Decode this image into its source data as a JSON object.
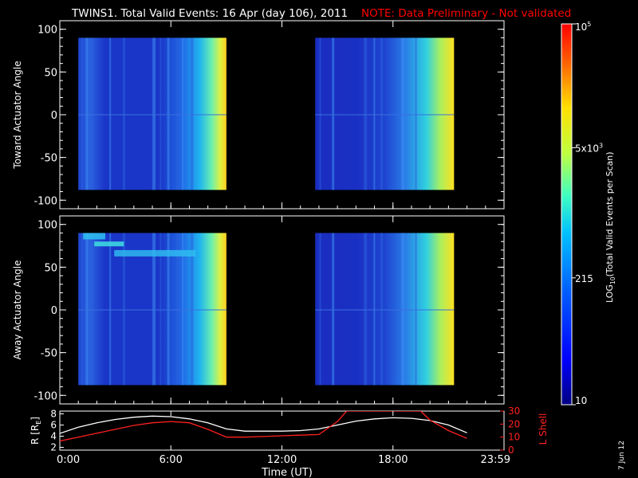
{
  "header": {
    "title": "TWINS1. Total Valid Events: 16 Apr (day 106), 2011",
    "note": "NOTE: Data Preliminary - Not validated"
  },
  "colors": {
    "background": "#000000",
    "axes": "#ffffff",
    "note": "#ff0000",
    "r_line": "#ffffff",
    "l_shell_line": "#ff2020"
  },
  "date_stamp": "7 Jun 12",
  "chart_data": [
    {
      "type": "heatmap",
      "id": "toward",
      "ylabel": "Toward Actuator Angle",
      "ylim": [
        -110,
        110
      ],
      "yticks": [
        100,
        50,
        0,
        -50,
        -100
      ],
      "xlim": [
        0,
        24
      ],
      "data_blocks": [
        {
          "x_start_h": 1.0,
          "x_end_h": 9.0,
          "y_min": -88,
          "y_max": 90
        },
        {
          "x_start_h": 13.8,
          "x_end_h": 21.3,
          "y_min": -88,
          "y_max": 90
        }
      ]
    },
    {
      "type": "heatmap",
      "id": "away",
      "ylabel": "Away Actuator Angle",
      "ylim": [
        -110,
        110
      ],
      "yticks": [
        100,
        50,
        0,
        -50,
        -100
      ],
      "xlim": [
        0,
        24
      ],
      "data_blocks": [
        {
          "x_start_h": 1.0,
          "x_end_h": 9.0,
          "y_min": -88,
          "y_max": 90
        },
        {
          "x_start_h": 13.8,
          "x_end_h": 21.3,
          "y_min": -88,
          "y_max": 90
        }
      ],
      "feature": "enhanced band near +70 to +80 deg, 1:00-7:00"
    },
    {
      "type": "line",
      "id": "orbit",
      "ylabel_left": "R [R_E]",
      "ylabel_right": "L Shell",
      "xlabel": "Time (UT)",
      "x_ticks": [
        "0:00",
        "6:00",
        "12:00",
        "18:00",
        "23:59"
      ],
      "left_ticks": [
        8,
        6,
        4,
        2
      ],
      "left_ylim": [
        1.5,
        8.5
      ],
      "right_ticks": [
        30,
        20,
        10,
        0
      ],
      "right_ylim": [
        0,
        30
      ],
      "series": [
        {
          "name": "R",
          "axis": "left",
          "x": [
            0,
            1,
            2,
            3,
            4,
            5,
            6,
            7,
            8,
            9,
            10,
            11,
            12,
            13,
            14,
            15,
            16,
            17,
            18,
            19,
            20,
            21,
            22
          ],
          "y": [
            4.5,
            5.6,
            6.4,
            7.0,
            7.4,
            7.6,
            7.5,
            7.1,
            6.4,
            5.3,
            4.9,
            4.9,
            4.9,
            5.0,
            5.3,
            6.0,
            6.7,
            7.1,
            7.3,
            7.2,
            6.8,
            6.0,
            4.6
          ]
        },
        {
          "name": "L Shell",
          "axis": "right",
          "x": [
            0,
            1,
            2,
            3,
            4,
            5,
            6,
            7,
            8,
            9,
            10,
            11,
            12,
            13,
            14,
            15,
            15.5,
            19.5,
            20,
            21,
            22
          ],
          "y": [
            7,
            10,
            13,
            16,
            19,
            21,
            22,
            21,
            16,
            10,
            10,
            10.5,
            11,
            11.5,
            12,
            22,
            30,
            30,
            23,
            15,
            9
          ]
        }
      ]
    }
  ],
  "colorbar": {
    "label": "LOG10(Total Valid Events per Scan)",
    "label_main": "LOG",
    "label_sub": "10",
    "label_rest": "(Total Valid Events per Scan)",
    "ticks": [
      {
        "base": "10",
        "exp": "5",
        "value": 100000
      },
      {
        "base": "5x10",
        "exp": "3",
        "value": 5000
      },
      {
        "base": "215",
        "exp": "",
        "value": 215
      },
      {
        "base": "10",
        "exp": "",
        "value": 10
      }
    ],
    "log_range": [
      1,
      5
    ],
    "colors": [
      "#000080",
      "#0000ff",
      "#0060ff",
      "#00c0ff",
      "#40ffc0",
      "#c0ff40",
      "#ffe000",
      "#ff6000",
      "#ff0000"
    ]
  }
}
